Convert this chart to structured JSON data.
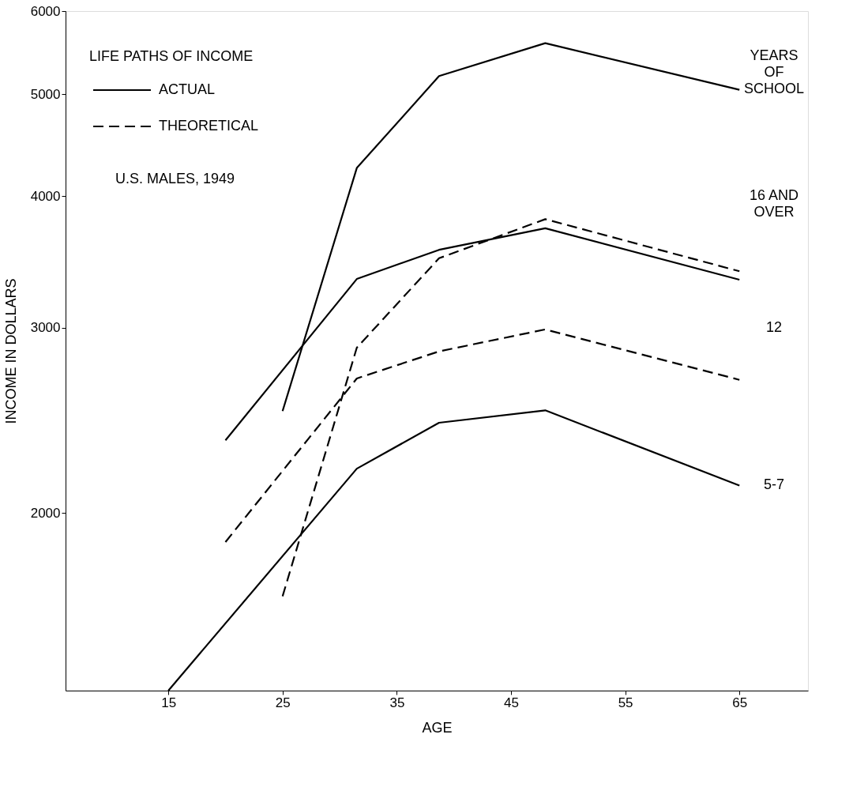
{
  "chart_data": {
    "type": "line",
    "xlabel": "AGE",
    "ylabel": "INCOME IN DOLLARS",
    "legend_title": "LIFE PATHS OF INCOME",
    "legend": "top left",
    "log": "y",
    "grid": false,
    "marker": "none",
    "xlim": [
      6,
      71
    ],
    "xticks": [
      15,
      25,
      35,
      45,
      55,
      65
    ],
    "ylim": [
      1356,
      6000
    ],
    "yticks": [
      2000,
      3000,
      4000,
      5000,
      6000
    ],
    "series": [
      {
        "name": "ACTUAL",
        "color": "#000000",
        "line_style": "solid",
        "x": [
          25,
          31.5,
          38.7,
          48,
          65
        ],
        "values": [
          2500,
          4256,
          5204,
          5593,
          5050
        ]
      },
      {
        "color": "#000000",
        "line_style": "solid",
        "x": [
          20,
          31.5,
          38.7,
          48,
          65
        ],
        "values": [
          2345,
          3338,
          3558,
          3730,
          3333
        ]
      },
      {
        "color": "#000000",
        "line_style": "solid",
        "x": [
          15,
          31.5,
          38.7,
          48,
          65
        ],
        "values": [
          1356,
          2204,
          2437,
          2504,
          2124
        ]
      },
      {
        "name": "THEORETICAL",
        "color": "#000000",
        "line_style": "dashed",
        "x": [
          25,
          31.5,
          38.7,
          48,
          65
        ],
        "values": [
          1667,
          2872,
          3493,
          3805,
          3395
        ]
      },
      {
        "color": "#000000",
        "line_style": "dashed",
        "x": [
          20,
          31.5,
          38.7,
          48,
          65
        ],
        "values": [
          1877,
          2685,
          2849,
          2989,
          2677
        ]
      }
    ],
    "annotations": [
      "U.S. MALES, 1949",
      "YEARS OF SCHOOL",
      "16 AND OVER",
      "12",
      "5-7"
    ]
  }
}
